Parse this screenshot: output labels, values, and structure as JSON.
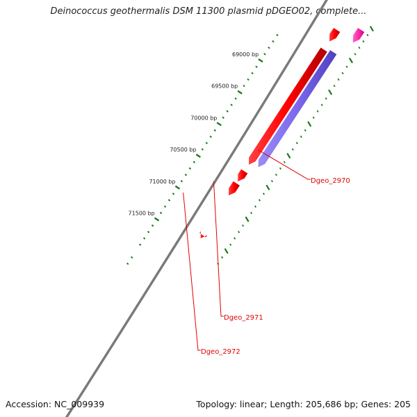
{
  "title": "Deinococcus geothermalis DSM 11300 plasmid pDGEO02, complete...",
  "footer": {
    "accession": "Accession: NC_009939",
    "summary": "Topology: linear; Length: 205,686 bp; Genes: 205"
  },
  "colors": {
    "backbone": "#7a7a7a",
    "gene_forward": "#ff0000",
    "gene_reverse": "#7b68ee",
    "gene_other": "#ff2aa8",
    "tick": "#1a7a1a",
    "label": "#e00000"
  },
  "ruler": {
    "ticks": [
      {
        "bp": 69000,
        "label": "69000 bp"
      },
      {
        "bp": 69500,
        "label": "69500 bp"
      },
      {
        "bp": 70000,
        "label": "70000 bp"
      },
      {
        "bp": 70500,
        "label": "70500 bp"
      },
      {
        "bp": 71000,
        "label": "71000 bp"
      },
      {
        "bp": 71500,
        "label": "71500 bp"
      }
    ]
  },
  "genes": [
    {
      "label": "Dgeo_2970",
      "strand": "forward",
      "start_bp": 68830,
      "end_bp": 70640
    },
    {
      "label": "Dgeo_2970",
      "strand": "reverse",
      "start_bp": 68870,
      "end_bp": 70680
    },
    {
      "label": "Dgeo_2971",
      "strand": "forward",
      "start_bp": 70745,
      "end_bp": 70905
    },
    {
      "label": "Dgeo_2972",
      "strand": "forward",
      "start_bp": 70935,
      "end_bp": 71125
    },
    {
      "label": "",
      "strand": "forward",
      "start_bp": 68520,
      "end_bp": 68700
    },
    {
      "label": "",
      "strand": "other",
      "start_bp": 68520,
      "end_bp": 68720
    },
    {
      "label": "",
      "strand": "forward",
      "start_bp": 71750,
      "end_bp": 71800
    }
  ],
  "gene_labels": [
    {
      "text": "Dgeo_2970"
    },
    {
      "text": "Dgeo_2971"
    },
    {
      "text": "Dgeo_2972"
    }
  ]
}
